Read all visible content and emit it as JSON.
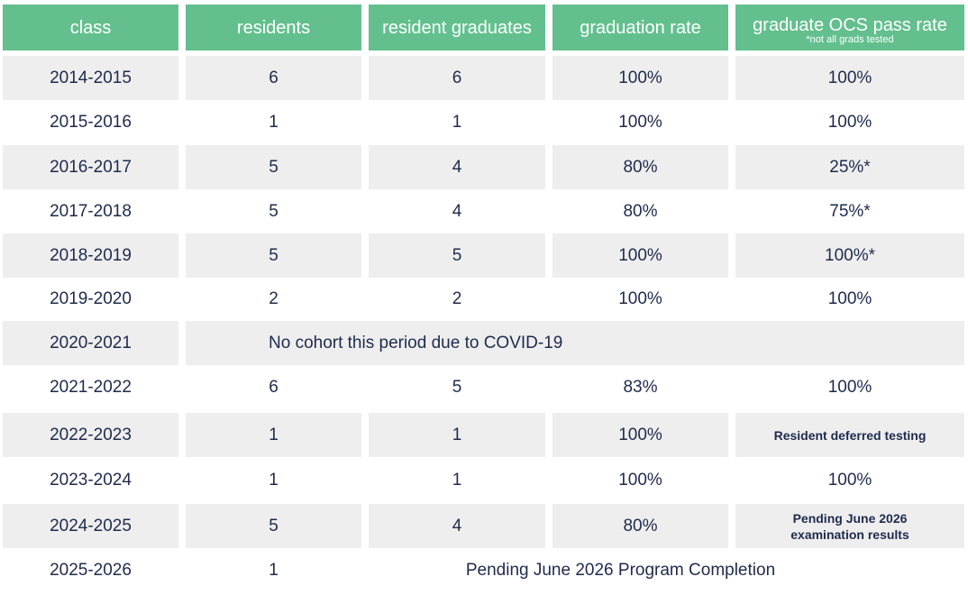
{
  "headers": {
    "class": "class",
    "residents": "residents",
    "resident_graduates": "resident graduates",
    "graduation_rate": "graduation rate",
    "ocs_pass_rate": "graduate OCS pass rate",
    "ocs_note": "*not all grads tested"
  },
  "rows": [
    {
      "class": "2014-2015",
      "residents": "6",
      "graduates": "6",
      "grad_rate": "100%",
      "ocs": "100%"
    },
    {
      "class": "2015-2016",
      "residents": "1",
      "graduates": "1",
      "grad_rate": "100%",
      "ocs": "100%"
    },
    {
      "class": "2016-2017",
      "residents": "5",
      "graduates": "4",
      "grad_rate": "80%",
      "ocs": "25%*"
    },
    {
      "class": "2017-2018",
      "residents": "5",
      "graduates": "4",
      "grad_rate": "80%",
      "ocs": "75%*"
    },
    {
      "class": "2018-2019",
      "residents": "5",
      "graduates": "5",
      "grad_rate": "100%",
      "ocs": "100%*"
    },
    {
      "class": "2019-2020",
      "residents": "2",
      "graduates": "2",
      "grad_rate": "100%",
      "ocs": "100%"
    },
    {
      "class": "2020-2021",
      "note": "No cohort this period due to COVID-19"
    },
    {
      "class": "2021-2022",
      "residents": "6",
      "graduates": "5",
      "grad_rate": "83%",
      "ocs": "100%"
    },
    {
      "class": "2022-2023",
      "residents": "1",
      "graduates": "1",
      "grad_rate": "100%",
      "ocs": "Resident deferred testing"
    },
    {
      "class": "2023-2024",
      "residents": "1",
      "graduates": "1",
      "grad_rate": "100%",
      "ocs": "100%"
    },
    {
      "class": "2024-2025",
      "residents": "5",
      "graduates": "4",
      "grad_rate": "80%",
      "ocs_line1": "Pending June 2026",
      "ocs_line2": "examination results"
    },
    {
      "class": "2025-2026",
      "residents": "1",
      "note": "Pending June 2026 Program Completion"
    }
  ]
}
